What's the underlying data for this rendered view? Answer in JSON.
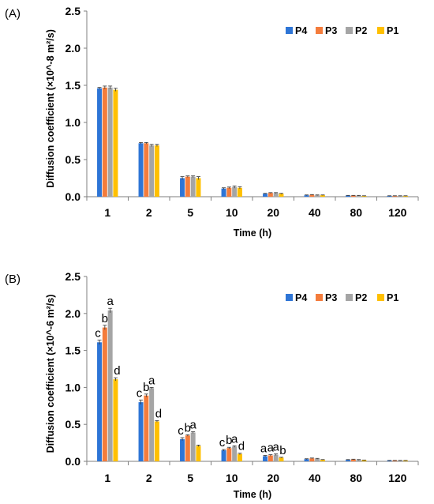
{
  "chart_data": [
    {
      "panel_label": "(A)",
      "type": "bar",
      "categories": [
        "1",
        "2",
        "5",
        "10",
        "20",
        "40",
        "80",
        "120"
      ],
      "xlabel": "Time (h)",
      "ylabel": "Diffusion coefficient (×10^-8  m²/s)",
      "ylim": [
        0,
        2.5
      ],
      "yticks": [
        "0.0",
        "0.5",
        "1.0",
        "1.5",
        "2.0",
        "2.5"
      ],
      "legend": "top-right",
      "grid": false,
      "series": [
        {
          "name": "P4",
          "color": "#2e75d6",
          "values": [
            1.46,
            0.72,
            0.25,
            0.11,
            0.04,
            0.02,
            0.015,
            0.01
          ],
          "errors": [
            0.012,
            0.01,
            0.02,
            0.01,
            0.005,
            0.004,
            0.003,
            0.003
          ]
        },
        {
          "name": "P3",
          "color": "#f47c3c",
          "values": [
            1.47,
            0.72,
            0.27,
            0.12,
            0.05,
            0.025,
            0.015,
            0.01
          ],
          "errors": [
            0.02,
            0.01,
            0.01,
            0.01,
            0.005,
            0.004,
            0.003,
            0.003
          ]
        },
        {
          "name": "P2",
          "color": "#a5a5a5",
          "values": [
            1.47,
            0.69,
            0.27,
            0.13,
            0.05,
            0.02,
            0.015,
            0.01
          ],
          "errors": [
            0.02,
            0.015,
            0.01,
            0.015,
            0.005,
            0.004,
            0.003,
            0.003
          ]
        },
        {
          "name": "P1",
          "color": "#ffc000",
          "values": [
            1.44,
            0.69,
            0.25,
            0.12,
            0.04,
            0.02,
            0.01,
            0.01
          ],
          "errors": [
            0.02,
            0.015,
            0.02,
            0.015,
            0.005,
            0.004,
            0.003,
            0.003
          ]
        }
      ]
    },
    {
      "panel_label": "(B)",
      "type": "bar",
      "categories": [
        "1",
        "2",
        "5",
        "10",
        "20",
        "40",
        "80",
        "120"
      ],
      "xlabel": "Time (h)",
      "ylabel": "Diffusion coefficient (×10^-6  m²/s)",
      "ylim": [
        0,
        2.5
      ],
      "yticks": [
        "0.0",
        "0.5",
        "1.0",
        "1.5",
        "2.0",
        "2.5"
      ],
      "legend": "top-right",
      "grid": false,
      "series": [
        {
          "name": "P4",
          "color": "#2e75d6",
          "values": [
            1.61,
            0.8,
            0.3,
            0.15,
            0.07,
            0.03,
            0.02,
            0.01
          ],
          "errors": [
            0.03,
            0.03,
            0.02,
            0.01,
            0.01,
            0.005,
            0.004,
            0.003
          ]
        },
        {
          "name": "P3",
          "color": "#f47c3c",
          "values": [
            1.81,
            0.89,
            0.35,
            0.18,
            0.08,
            0.04,
            0.025,
            0.01
          ],
          "errors": [
            0.03,
            0.02,
            0.01,
            0.01,
            0.01,
            0.005,
            0.004,
            0.003
          ]
        },
        {
          "name": "P2",
          "color": "#a5a5a5",
          "values": [
            2.04,
            0.99,
            0.39,
            0.2,
            0.09,
            0.035,
            0.02,
            0.01
          ],
          "errors": [
            0.03,
            0.01,
            0.01,
            0.01,
            0.01,
            0.005,
            0.004,
            0.003
          ]
        },
        {
          "name": "P1",
          "color": "#ffc000",
          "values": [
            1.11,
            0.54,
            0.21,
            0.1,
            0.05,
            0.02,
            0.015,
            0.01
          ],
          "errors": [
            0.02,
            0.01,
            0.01,
            0.01,
            0.005,
            0.004,
            0.003,
            0.003
          ]
        }
      ],
      "annotations": [
        {
          "category": "1",
          "letters": [
            "c",
            "b",
            "a",
            "d"
          ]
        },
        {
          "category": "2",
          "letters": [
            "c",
            "b",
            "a",
            "d"
          ]
        },
        {
          "category": "5",
          "letters": [
            "c",
            "b",
            "a",
            ""
          ]
        },
        {
          "category": "10",
          "letters": [
            "c",
            "b",
            "a",
            "d"
          ]
        },
        {
          "category": "20",
          "letters": [
            "a",
            "a",
            "a",
            "b"
          ]
        }
      ]
    }
  ]
}
